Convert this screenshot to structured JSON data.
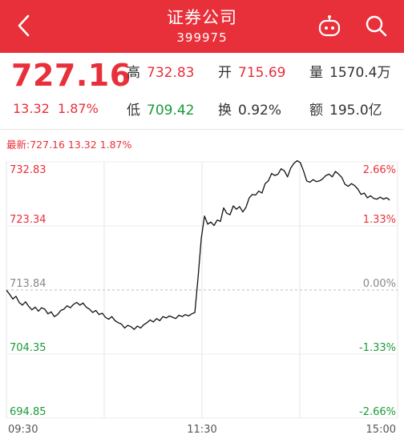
{
  "header": {
    "title": "证券公司",
    "code": "399975",
    "icons": [
      "back-arrow-icon",
      "robot-icon",
      "search-icon"
    ],
    "bg_color": "#e8303a"
  },
  "quote": {
    "price": "727.16",
    "change": "13.32",
    "change_pct": "1.87%",
    "high_label": "高",
    "high": "732.83",
    "open_label": "开",
    "open": "715.69",
    "volume_label": "量",
    "volume": "1570.4万",
    "low_label": "低",
    "low": "709.42",
    "turnover_label": "换",
    "turnover": "0.92%",
    "amount_label": "额",
    "amount": "195.0亿",
    "up_color": "#e8303a",
    "down_color": "#1a9a3a"
  },
  "chart_label": "最新:727.16 13.32 1.87%",
  "chart_data": {
    "type": "line",
    "y_left_ticks": [
      "732.83",
      "723.34",
      "713.84",
      "704.35",
      "694.85"
    ],
    "y_right_ticks": [
      "2.66%",
      "1.33%",
      "0.00%",
      "-1.33%",
      "-2.66%"
    ],
    "x_ticks": [
      "09:30",
      "11:30",
      "15:00"
    ],
    "ylim": [
      694.85,
      732.83
    ],
    "prev_close": 713.84,
    "series": [
      {
        "values": [
          713.8,
          713.2,
          712.5,
          712.9,
          712.0,
          711.6,
          712.1,
          711.4,
          710.9,
          711.3,
          710.7,
          711.2,
          711.0,
          710.3,
          710.6,
          709.9,
          710.2,
          710.8,
          711.0,
          711.5,
          711.2,
          711.7,
          712.0,
          711.6,
          711.9,
          711.3,
          711.0,
          710.5,
          710.8,
          710.2,
          710.4,
          709.8,
          709.5,
          709.9,
          709.3,
          709.0,
          708.8,
          708.2,
          708.6,
          708.4,
          708.0,
          708.5,
          708.2,
          708.7,
          709.0,
          709.4,
          709.1,
          709.6,
          709.3,
          709.9,
          709.7,
          710.0,
          709.8,
          709.6,
          710.1,
          709.9,
          710.2,
          710.0,
          710.3,
          710.5,
          715.7,
          721.5,
          724.8,
          723.6,
          723.9,
          723.4,
          724.2,
          724.0,
          726.0,
          725.2,
          725.0,
          726.3,
          725.8,
          726.2,
          725.4,
          726.1,
          727.5,
          728.0,
          727.9,
          728.5,
          728.2,
          729.6,
          730.0,
          731.1,
          730.8,
          731.0,
          731.8,
          731.5,
          730.6,
          731.9,
          732.6,
          733.0,
          732.7,
          731.5,
          730.0,
          729.8,
          730.2,
          729.9,
          730.0,
          730.3,
          730.8,
          731.0,
          730.6,
          731.4,
          731.0,
          730.5,
          729.5,
          729.2,
          729.6,
          729.3,
          728.8,
          728.0,
          728.2,
          727.5,
          727.8,
          727.4,
          727.3,
          727.6,
          727.3,
          727.5,
          727.16
        ]
      }
    ]
  }
}
